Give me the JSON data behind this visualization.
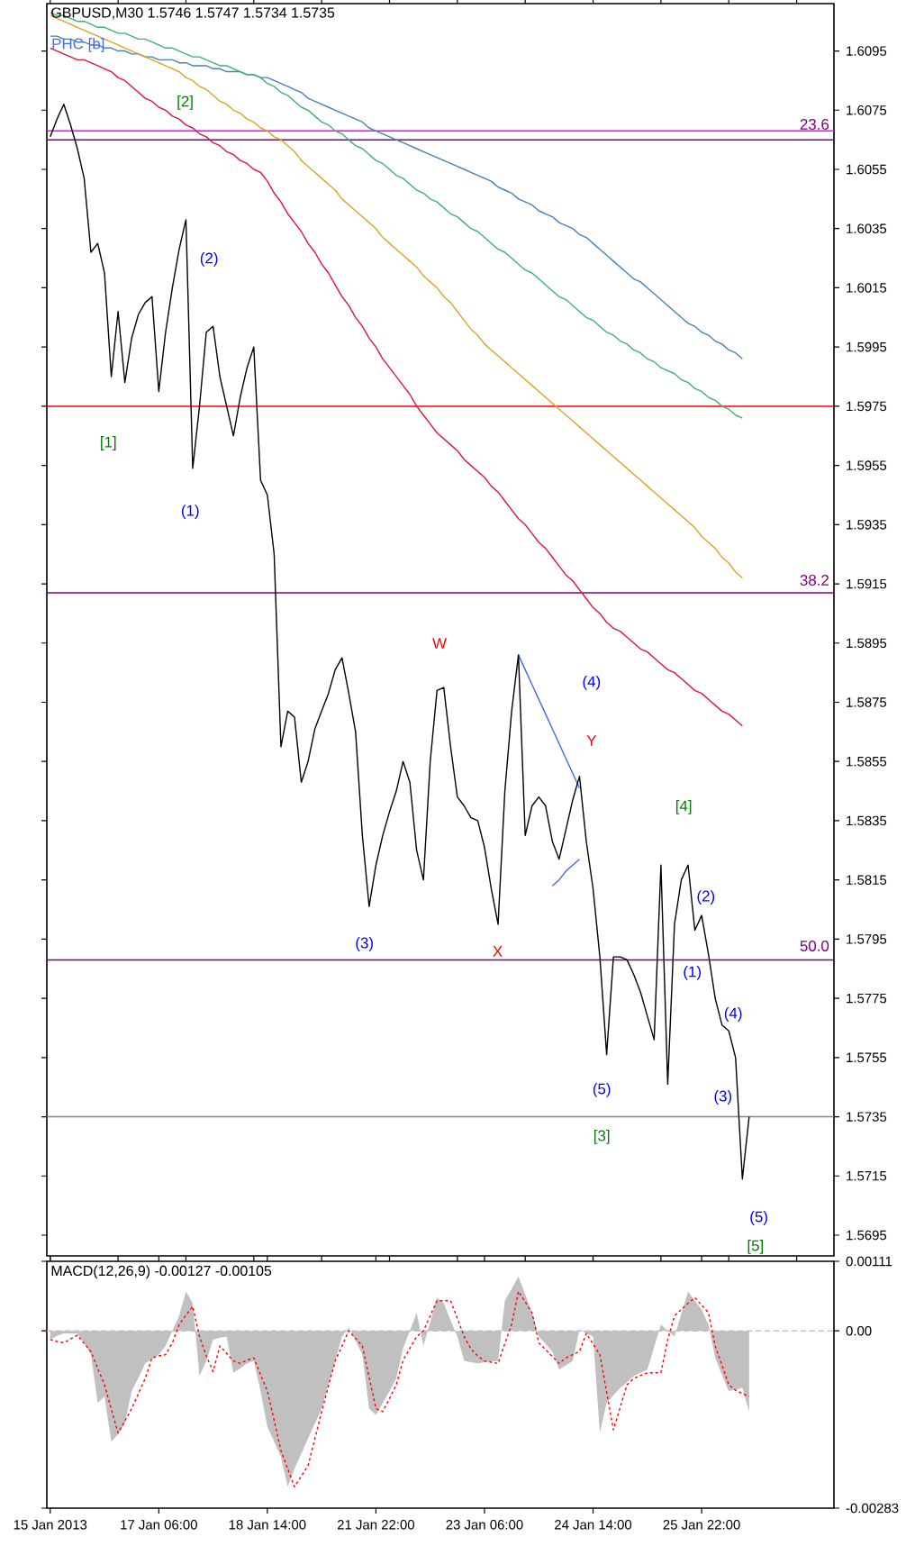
{
  "chart_data": [
    {
      "type": "line",
      "title": "GBPUSD,M30 1.5746 1.5747 1.5734 1.5735",
      "categories": [
        null,
        null,
        null,
        null,
        null,
        null,
        null,
        null,
        null,
        null,
        null,
        null,
        null,
        null,
        null,
        null,
        null,
        null,
        null,
        null,
        null,
        null,
        null,
        null,
        null,
        null,
        null,
        null,
        null,
        null,
        null,
        null,
        null,
        null,
        null,
        null,
        null,
        null,
        null,
        null,
        null,
        null,
        null,
        null,
        null,
        null,
        null,
        null,
        null,
        null,
        null,
        null,
        null,
        null,
        null,
        null,
        null,
        null,
        null,
        null,
        null,
        null,
        null,
        null,
        null,
        null,
        null,
        null,
        null,
        null,
        null,
        null,
        null,
        null,
        null,
        null,
        null,
        null,
        null,
        null,
        null,
        null,
        null,
        null,
        null,
        null,
        null,
        null,
        null,
        null,
        null,
        null,
        null,
        null,
        null,
        null,
        null,
        null,
        null,
        null,
        null,
        null,
        null,
        null,
        null,
        null,
        null,
        null,
        null,
        null,
        null,
        null,
        null,
        null,
        null,
        null
      ],
      "ylim": [
        1.5688,
        1.6111
      ],
      "tick_labels": "y",
      "yticks": [
        1.6095,
        1.6075,
        1.6055,
        1.6035,
        1.6015,
        1.5995,
        1.5975,
        1.5955,
        1.5935,
        1.5915,
        1.5895,
        1.5875,
        1.5855,
        1.5835,
        1.5815,
        1.5795,
        1.5775,
        1.5755,
        1.5735,
        1.5715,
        1.5695
      ],
      "ref_lines": [
        {
          "axis": "y",
          "value": 1.6068,
          "color": "#ff00ff"
        },
        {
          "axis": "y",
          "value": 1.6065,
          "color": "#800080"
        },
        {
          "axis": "y",
          "value": 1.5975,
          "color": "#ff0000"
        },
        {
          "axis": "y",
          "value": 1.5912,
          "color": "#800080"
        },
        {
          "axis": "y",
          "value": 1.5788,
          "color": "#800080"
        },
        {
          "axis": "y",
          "value": 1.5735,
          "color": "#778899"
        }
      ],
      "series": [
        {
          "color": "#4682b4",
          "values": [
            1.61,
            1.61,
            1.6099,
            1.6099,
            1.6098,
            1.6098,
            1.6097,
            1.6097,
            1.6096,
            1.6096,
            1.6095,
            1.6095,
            1.6094,
            1.6094,
            1.6093,
            1.6093,
            1.6092,
            1.6092,
            1.6092,
            1.6091,
            1.6091,
            1.609,
            1.609,
            1.609,
            1.6089,
            1.6089,
            1.6088,
            1.6088,
            1.6088,
            1.6087,
            1.6087,
            1.6086,
            1.6086,
            1.6085,
            1.6084,
            1.6083,
            1.6082,
            1.6081,
            1.6079,
            1.6078,
            1.6077,
            1.6076,
            1.6075,
            1.6074,
            1.6073,
            1.6072,
            1.6071,
            1.6069,
            1.6068,
            1.6067,
            1.6066,
            1.6065,
            1.6064,
            1.6063,
            1.6062,
            1.6061,
            1.606,
            1.6059,
            1.6058,
            1.6057,
            1.6056,
            1.6055,
            1.6054,
            1.6053,
            1.6052,
            1.6051,
            1.6049,
            1.6048,
            1.6047,
            1.6045,
            1.6044,
            1.6043,
            1.6041,
            1.604,
            1.6039,
            1.6037,
            1.6036,
            1.6035,
            1.6033,
            1.6032,
            1.603,
            1.6028,
            1.6026,
            1.6024,
            1.6022,
            1.602,
            1.6018,
            1.6017,
            1.6015,
            1.6013,
            1.6011,
            1.6009,
            1.6007,
            1.6005,
            1.6003,
            1.6002,
            1.6,
            1.5999,
            1.5997,
            1.5996,
            1.5994,
            1.5993,
            1.5991,
            null,
            null,
            null,
            null,
            null,
            null,
            null,
            null,
            null,
            null,
            null,
            null,
            null
          ]
        },
        {
          "color": "#3cb371",
          "values": [
            1.6108,
            1.6107,
            1.6107,
            1.6106,
            1.6105,
            1.6105,
            1.6104,
            1.6103,
            1.6103,
            1.6102,
            1.6101,
            1.6101,
            1.61,
            1.6099,
            1.6099,
            1.6098,
            1.6097,
            1.6096,
            1.6096,
            1.6095,
            1.6094,
            1.6093,
            1.6093,
            1.6092,
            1.6091,
            1.609,
            1.609,
            1.6089,
            1.6088,
            1.6087,
            1.6087,
            1.6086,
            1.6084,
            1.6083,
            1.6081,
            1.608,
            1.6078,
            1.6076,
            1.6075,
            1.6073,
            1.6071,
            1.607,
            1.6068,
            1.6067,
            1.6065,
            1.6063,
            1.6062,
            1.606,
            1.6058,
            1.6057,
            1.6055,
            1.6053,
            1.6052,
            1.605,
            1.6048,
            1.6047,
            1.6045,
            1.6044,
            1.6042,
            1.604,
            1.6039,
            1.6037,
            1.6035,
            1.6034,
            1.6032,
            1.603,
            1.6028,
            1.6027,
            1.6025,
            1.6023,
            1.6021,
            1.602,
            1.6018,
            1.6016,
            1.6014,
            1.6012,
            1.6011,
            1.6009,
            1.6007,
            1.6005,
            1.6004,
            1.6002,
            1.6,
            1.5999,
            1.5997,
            1.5996,
            1.5994,
            1.5993,
            1.5991,
            1.599,
            1.5988,
            1.5987,
            1.5986,
            1.5984,
            1.5983,
            1.5981,
            1.598,
            1.5978,
            1.5977,
            1.5975,
            1.5974,
            1.5972,
            1.5971,
            null,
            null,
            null,
            null,
            null,
            null,
            null,
            null,
            null,
            null,
            null,
            null,
            null
          ]
        },
        {
          "color": "#daa520",
          "values": [
            1.6107,
            1.6106,
            1.6105,
            1.6104,
            1.6103,
            1.6102,
            1.6101,
            1.61,
            1.6099,
            1.6098,
            1.6097,
            1.6096,
            1.6095,
            1.6094,
            1.6093,
            1.6092,
            1.6091,
            1.609,
            1.6089,
            1.6088,
            1.6086,
            1.6085,
            1.6083,
            1.6082,
            1.608,
            1.6078,
            1.6077,
            1.6075,
            1.6074,
            1.6072,
            1.6071,
            1.6069,
            1.6068,
            1.6066,
            1.6065,
            1.6063,
            1.6061,
            1.6058,
            1.6056,
            1.6054,
            1.6052,
            1.605,
            1.6048,
            1.6045,
            1.6043,
            1.6041,
            1.6039,
            1.6037,
            1.6035,
            1.6032,
            1.603,
            1.6028,
            1.6026,
            1.6024,
            1.6022,
            1.6019,
            1.6017,
            1.6015,
            1.6012,
            1.601,
            1.6007,
            1.6004,
            1.6001,
            1.5999,
            1.5996,
            1.5994,
            1.5992,
            1.599,
            1.5988,
            1.5986,
            1.5984,
            1.5982,
            1.598,
            1.5978,
            1.5976,
            1.5974,
            1.5972,
            1.597,
            1.5968,
            1.5966,
            1.5964,
            1.5962,
            1.596,
            1.5958,
            1.5956,
            1.5954,
            1.5952,
            1.595,
            1.5948,
            1.5946,
            1.5944,
            1.5942,
            1.594,
            1.5938,
            1.5936,
            1.5934,
            1.5931,
            1.5929,
            1.5927,
            1.5924,
            1.5922,
            1.5919,
            1.5917,
            null,
            null,
            null,
            null,
            null,
            null,
            null,
            null,
            null,
            null,
            null,
            null,
            null
          ]
        },
        {
          "color": "#dc143c",
          "values": [
            1.6096,
            1.6095,
            1.6094,
            1.6093,
            1.6092,
            1.6092,
            1.6091,
            1.609,
            1.6089,
            1.6088,
            1.6086,
            1.6085,
            1.6083,
            1.6081,
            1.6079,
            1.6078,
            1.6076,
            1.6075,
            1.6073,
            1.6072,
            1.607,
            1.6069,
            1.6067,
            1.6066,
            1.6064,
            1.6063,
            1.6061,
            1.606,
            1.6058,
            1.6057,
            1.6055,
            1.6054,
            1.6051,
            1.6047,
            1.6044,
            1.604,
            1.6037,
            1.6034,
            1.603,
            1.6027,
            1.6023,
            1.602,
            1.6016,
            1.6012,
            1.6009,
            1.6005,
            1.6002,
            1.5998,
            1.5995,
            1.5991,
            1.5988,
            1.5985,
            1.5982,
            1.5979,
            1.5975,
            1.5972,
            1.5969,
            1.5966,
            1.5964,
            1.5962,
            1.596,
            1.5957,
            1.5955,
            1.5953,
            1.5951,
            1.5948,
            1.5946,
            1.5943,
            1.594,
            1.5937,
            1.5935,
            1.5932,
            1.5929,
            1.5927,
            1.5924,
            1.5921,
            1.5918,
            1.5916,
            1.5913,
            1.591,
            1.5907,
            1.5905,
            1.5902,
            1.59,
            1.5899,
            1.5897,
            1.5895,
            1.5893,
            1.5892,
            1.589,
            1.5888,
            1.5886,
            1.5885,
            1.5883,
            1.5881,
            1.5879,
            1.5878,
            1.5876,
            1.5874,
            1.5872,
            1.5871,
            1.5869,
            1.5867,
            null,
            null,
            null,
            null,
            null,
            null,
            null,
            null,
            null,
            null,
            null,
            null,
            null
          ]
        },
        {
          "color": "#4169e1",
          "values": [
            null,
            null,
            null,
            null,
            null,
            null,
            null,
            null,
            null,
            null,
            null,
            null,
            null,
            null,
            null,
            null,
            null,
            null,
            null,
            null,
            null,
            null,
            null,
            null,
            null,
            null,
            null,
            null,
            null,
            null,
            null,
            null,
            null,
            null,
            null,
            null,
            null,
            null,
            null,
            null,
            null,
            null,
            null,
            null,
            null,
            null,
            null,
            null,
            null,
            null,
            null,
            null,
            null,
            null,
            null,
            null,
            null,
            null,
            null,
            null,
            null,
            null,
            null,
            null,
            null,
            null,
            null,
            null,
            null,
            1.5891,
            1.5886,
            1.5881,
            1.5876,
            1.5871,
            1.5866,
            1.5861,
            1.5856,
            1.5851,
            1.5846,
            null,
            null,
            null,
            null,
            null,
            null,
            null,
            null,
            null,
            null,
            null,
            null,
            null,
            null,
            null,
            null,
            null,
            null,
            null,
            null,
            null,
            null,
            null,
            null,
            null,
            null,
            null,
            null,
            null,
            null,
            null,
            null,
            null,
            null,
            null,
            null,
            null
          ]
        },
        {
          "color": "#4169e1",
          "values": [
            null,
            null,
            null,
            null,
            null,
            null,
            null,
            null,
            null,
            null,
            null,
            null,
            null,
            null,
            null,
            null,
            null,
            null,
            null,
            null,
            null,
            null,
            null,
            null,
            null,
            null,
            null,
            null,
            null,
            null,
            null,
            null,
            null,
            null,
            null,
            null,
            null,
            null,
            null,
            null,
            null,
            null,
            null,
            null,
            null,
            null,
            null,
            null,
            null,
            null,
            null,
            null,
            null,
            null,
            null,
            null,
            null,
            null,
            null,
            null,
            null,
            null,
            null,
            null,
            null,
            null,
            null,
            null,
            null,
            null,
            null,
            null,
            null,
            null,
            1.5813,
            1.5815,
            1.5818,
            1.582,
            1.5822,
            null,
            null,
            null,
            null,
            null,
            null,
            null,
            null,
            null,
            null,
            null,
            null,
            null,
            null,
            null,
            null,
            null,
            null,
            null,
            null,
            null,
            null,
            null,
            null,
            null,
            null,
            null,
            null,
            null,
            null,
            null,
            null,
            null,
            null,
            null,
            null,
            null
          ]
        },
        {
          "color": "#000000",
          "values": [
            1.6066,
            1.6072,
            1.6077,
            1.607,
            1.6062,
            1.6052,
            1.6027,
            1.603,
            1.602,
            1.5985,
            1.6007,
            1.5983,
            1.5998,
            1.6006,
            1.601,
            1.6012,
            1.598,
            1.6,
            1.6015,
            1.6028,
            1.6038,
            1.5954,
            1.5975,
            1.6,
            1.6002,
            1.5985,
            1.5975,
            1.5965,
            1.5978,
            1.5988,
            1.5995,
            1.595,
            1.5945,
            1.5925,
            1.586,
            1.5872,
            1.587,
            1.5848,
            1.5855,
            1.5866,
            1.5872,
            1.5878,
            1.5886,
            1.589,
            1.5878,
            1.5865,
            1.583,
            1.5806,
            1.582,
            1.583,
            1.5838,
            1.5845,
            1.5855,
            1.5848,
            1.5825,
            1.5815,
            1.5855,
            1.5879,
            1.588,
            1.586,
            1.5843,
            1.584,
            1.5836,
            1.5835,
            1.5826,
            1.5812,
            1.58,
            1.5845,
            1.5872,
            1.5891,
            1.583,
            1.584,
            1.5843,
            1.584,
            1.5828,
            1.5822,
            1.5832,
            1.5842,
            1.585,
            1.5828,
            1.5812,
            1.5789,
            1.5756,
            1.5789,
            1.5789,
            1.5788,
            1.5783,
            1.5777,
            1.5769,
            1.5761,
            1.582,
            1.5746,
            1.58,
            1.5815,
            1.582,
            1.5798,
            1.5803,
            1.579,
            1.5775,
            1.5766,
            1.5764,
            1.5755,
            1.5714,
            1.5735,
            null,
            null,
            null,
            null,
            null,
            null,
            null,
            null,
            null,
            null,
            null,
            null
          ]
        }
      ],
      "annotations": [
        "PHC [b]",
        "[2]",
        "[1]",
        "(2)",
        "(1)",
        "W",
        "(4)",
        "Y",
        "[4]",
        "(2)",
        "(3)",
        "X",
        "(1)",
        "(4)",
        "(5)",
        "(3)",
        "[3]",
        "(5)",
        "[5]",
        "23.6",
        "38.2",
        "50.0"
      ]
    },
    {
      "type": "area",
      "title": "MACD(12,26,9) -0.00127 -0.00105",
      "categories": [
        "15 Jan 2013",
        null,
        null,
        null,
        null,
        null,
        null,
        null,
        null,
        null,
        null,
        null,
        null,
        null,
        null,
        null,
        "17 Jan 06:00",
        null,
        null,
        null,
        null,
        null,
        null,
        null,
        null,
        null,
        null,
        null,
        null,
        null,
        null,
        null,
        "18 Jan 14:00",
        null,
        null,
        null,
        null,
        null,
        null,
        null,
        null,
        null,
        null,
        null,
        null,
        null,
        null,
        null,
        "21 Jan 22:00",
        null,
        null,
        null,
        null,
        null,
        null,
        null,
        null,
        null,
        null,
        null,
        null,
        null,
        null,
        null,
        "23 Jan 06:00",
        null,
        null,
        null,
        null,
        null,
        null,
        null,
        null,
        null,
        null,
        null,
        null,
        null,
        null,
        null,
        "24 Jan 14:00",
        null,
        null,
        null,
        null,
        null,
        null,
        null,
        null,
        null,
        null,
        null,
        null,
        null,
        null,
        null,
        "25 Jan 22:00",
        null,
        null,
        null,
        null,
        null,
        null,
        null,
        null,
        null,
        null,
        null,
        null,
        null,
        null,
        null,
        null,
        null,
        null,
        null
      ],
      "ylim": [
        -0.00283,
        0.00111
      ],
      "yticks": [
        0.00111,
        {
          "value": 0,
          "label": "0.00"
        },
        -0.00283
      ],
      "ref_lines": [
        {
          "axis": "y",
          "value": 0,
          "color": "#c0c0c0",
          "line_style": "dashed"
        }
      ],
      "series": [
        {
          "color": "#c0c0c0",
          "values": [
            -0.00014,
            -8e-05,
            -4e-05,
            -4e-05,
            -4e-05,
            -0.0002,
            -0.00038,
            -0.00115,
            -0.00105,
            -0.00177,
            -0.00165,
            -0.00148,
            -0.00096,
            -0.00075,
            -0.00052,
            -0.00045,
            -0.00038,
            -0.00024,
            0.0,
            0.00024,
            0.00063,
            0.00044,
            -0.00072,
            -0.00048,
            -0.00014,
            -0.00011,
            -9e-05,
            -0.00067,
            -0.0006,
            -0.00052,
            -0.00048,
            -0.00096,
            -0.00153,
            -0.00177,
            -0.00201,
            -0.00249,
            -0.0022,
            -0.00196,
            -0.00172,
            -0.00148,
            -0.00124,
            -0.00086,
            -0.00048,
            -9e-05,
            5e-05,
            -0.00016,
            -0.00038,
            -0.00124,
            -0.00134,
            -0.00115,
            -0.00096,
            -0.00076,
            -0.00028,
            0.0,
            0.00029,
            -0.00024,
            0.00014,
            0.00053,
            0.00044,
            0.00017,
            -9e-05,
            -0.00048,
            -0.0005,
            -0.00052,
            -0.0005,
            -0.00049,
            -0.00048,
            0.00048,
            0.00067,
            0.00087,
            0.00058,
            0.00029,
            -9e-05,
            -0.00021,
            -0.00033,
            -0.00062,
            -0.00055,
            -0.00048,
            2e-05,
            -4e-05,
            -9e-05,
            -0.00163,
            -0.00115,
            -0.00103,
            -0.00091,
            -0.00082,
            -0.00072,
            -0.00067,
            -0.00062,
            -0.00026,
            0.0001,
            0.0,
            -9e-05,
            0.00027,
            0.00063,
            0.00048,
            0.00034,
            0.0001,
            -0.00043,
            -0.0007,
            -0.00096,
            -0.00094,
            -0.00091,
            -0.00129,
            null,
            null,
            null,
            null,
            null,
            null,
            null,
            null,
            null,
            null,
            null,
            null
          ]
        },
        {
          "type": "line",
          "line_style": "dotted",
          "color": "#ff0000",
          "values": [
            -0.00014,
            -0.00017,
            -0.00019,
            -0.00013,
            -7e-05,
            -0.0002,
            -0.00033,
            -0.0006,
            -0.00086,
            -0.00125,
            -0.00163,
            -0.00144,
            -0.00124,
            -0.001,
            -0.00076,
            -0.00043,
            -0.0004,
            -0.00038,
            -0.00019,
            0.0001,
            0.00025,
            0.00039,
            -9e-05,
            -0.0004,
            -0.00065,
            -0.00024,
            -0.00036,
            -0.00048,
            -0.00052,
            -0.00047,
            -0.00043,
            -0.0007,
            -0.00096,
            -0.00143,
            -0.00191,
            -0.0022,
            -0.00249,
            -0.00232,
            -0.00215,
            -0.00172,
            -0.00129,
            -0.00088,
            -0.00048,
            -0.00024,
            0.0,
            -0.00012,
            -0.00024,
            -0.00074,
            -0.00124,
            -0.00129,
            -0.00108,
            -0.00086,
            -0.00047,
            -0.00028,
            -9e-05,
            0.0,
            0.00024,
            0.00048,
            0.00048,
            0.00048,
            0.0002,
            -9e-05,
            -0.00029,
            -0.0004,
            -0.00048,
            -0.0005,
            -0.00052,
            -0.0002,
            0.0001,
            0.00063,
            0.00046,
            0.00029,
            -0.00019,
            -0.0003,
            -0.00041,
            -0.00052,
            -0.00043,
            -0.00038,
            -0.00033,
            -4e-05,
            -0.00021,
            -0.00038,
            -0.00098,
            -0.00158,
            -0.00122,
            -0.00086,
            -0.00076,
            -0.00071,
            -0.00067,
            -0.00067,
            -0.00067,
            -0.00014,
            0.00024,
            0.00034,
            0.00044,
            0.00053,
            0.00041,
            0.00029,
            -0.00024,
            -0.00055,
            -0.00086,
            -0.00095,
            -0.001,
            -0.00105,
            null,
            null,
            null,
            null,
            null,
            null,
            null,
            null,
            null,
            null,
            null,
            null
          ]
        }
      ]
    }
  ]
}
